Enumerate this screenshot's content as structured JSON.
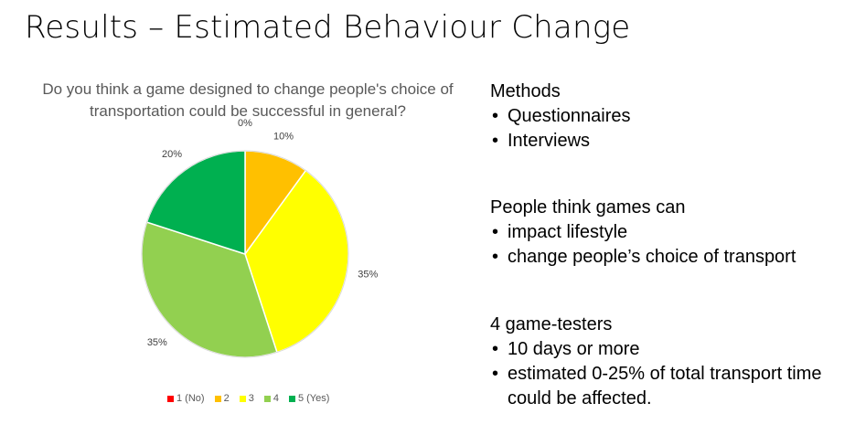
{
  "slide": {
    "title": "Results – Estimated Behaviour Change"
  },
  "chart_data": {
    "type": "pie",
    "title": "Do you think a game designed to change people's choice of transportation could be successful in general?",
    "categories": [
      "1 (No)",
      "2",
      "3",
      "4",
      "5 (Yes)"
    ],
    "values": [
      0,
      10,
      35,
      35,
      20
    ],
    "labels": [
      "0%",
      "10%",
      "35%",
      "35%",
      "20%"
    ],
    "colors": [
      "#ff0000",
      "#ffc000",
      "#ffff00",
      "#92d050",
      "#00b050"
    ],
    "legend_position": "bottom"
  },
  "sections": [
    {
      "heading": "Methods",
      "bullets": [
        "Questionnaires",
        "Interviews"
      ]
    },
    {
      "heading": "People think games can",
      "bullets": [
        "impact lifestyle",
        "change people’s choice of transport"
      ]
    },
    {
      "heading": "4 game-testers",
      "bullets": [
        "10 days or more",
        "estimated 0-25% of total transport time could be affected."
      ]
    }
  ]
}
